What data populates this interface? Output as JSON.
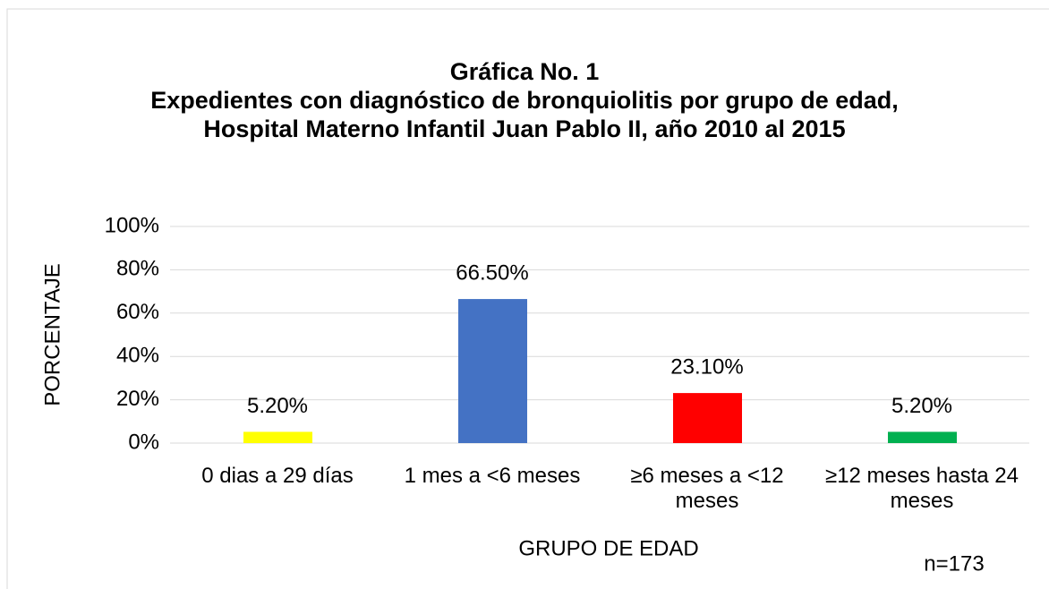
{
  "chart_data": {
    "type": "bar",
    "title": "Gráfica No. 1",
    "subtitle": "Expedientes con diagnóstico de bronquiolitis por grupo de edad, Hospital Materno Infantil Juan Pablo II, año 2010 al 2015",
    "categories": [
      "0 dias a 29 días",
      "1 mes a <6 meses",
      "≥6 meses a <12 meses",
      "≥12 meses hasta 24 meses"
    ],
    "values": [
      5.2,
      66.5,
      23.1,
      5.2
    ],
    "value_labels": [
      "5.20%",
      "66.50%",
      "23.10%",
      "5.20%"
    ],
    "colors": [
      "#ffff00",
      "#4472c4",
      "#ff0000",
      "#00b050"
    ],
    "ylim": [
      0,
      100
    ],
    "yticks": [
      {
        "value": 0,
        "label": "0%"
      },
      {
        "value": 20,
        "label": "20%"
      },
      {
        "value": 40,
        "label": "40%"
      },
      {
        "value": 60,
        "label": "60%"
      },
      {
        "value": 80,
        "label": "80%"
      },
      {
        "value": 100,
        "label": "100%"
      }
    ],
    "ylabel": "PORCENTAJE",
    "xlabel": "GRUPO DE EDAD",
    "annotation": "n=173",
    "grid": true
  }
}
